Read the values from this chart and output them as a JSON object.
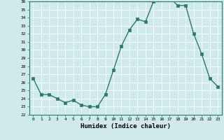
{
  "x": [
    0,
    1,
    2,
    3,
    4,
    5,
    6,
    7,
    8,
    9,
    10,
    11,
    12,
    13,
    14,
    15,
    16,
    17,
    18,
    19,
    20,
    21,
    22,
    23
  ],
  "y": [
    26.5,
    24.5,
    24.5,
    24.0,
    23.5,
    23.8,
    23.2,
    23.0,
    23.0,
    24.5,
    27.5,
    30.5,
    32.5,
    33.8,
    33.5,
    36.0,
    36.5,
    36.5,
    35.5,
    35.5,
    32.0,
    29.5,
    26.5,
    25.5
  ],
  "line_color": "#2a7a6e",
  "marker": "s",
  "marker_size": 2.2,
  "bg_color": "#ceeaea",
  "grid_color": "#ffffff",
  "xlabel": "Humidex (Indice chaleur)",
  "ylim": [
    22,
    36
  ],
  "xlim_min": -0.5,
  "xlim_max": 23.5,
  "yticks": [
    22,
    23,
    24,
    25,
    26,
    27,
    28,
    29,
    30,
    31,
    32,
    33,
    34,
    35,
    36
  ],
  "xticks": [
    0,
    1,
    2,
    3,
    4,
    5,
    6,
    7,
    8,
    9,
    10,
    11,
    12,
    13,
    14,
    15,
    16,
    17,
    18,
    19,
    20,
    21,
    22,
    23
  ],
  "tick_fontsize": 4.5,
  "xlabel_fontsize": 6.5,
  "linewidth": 1.0
}
